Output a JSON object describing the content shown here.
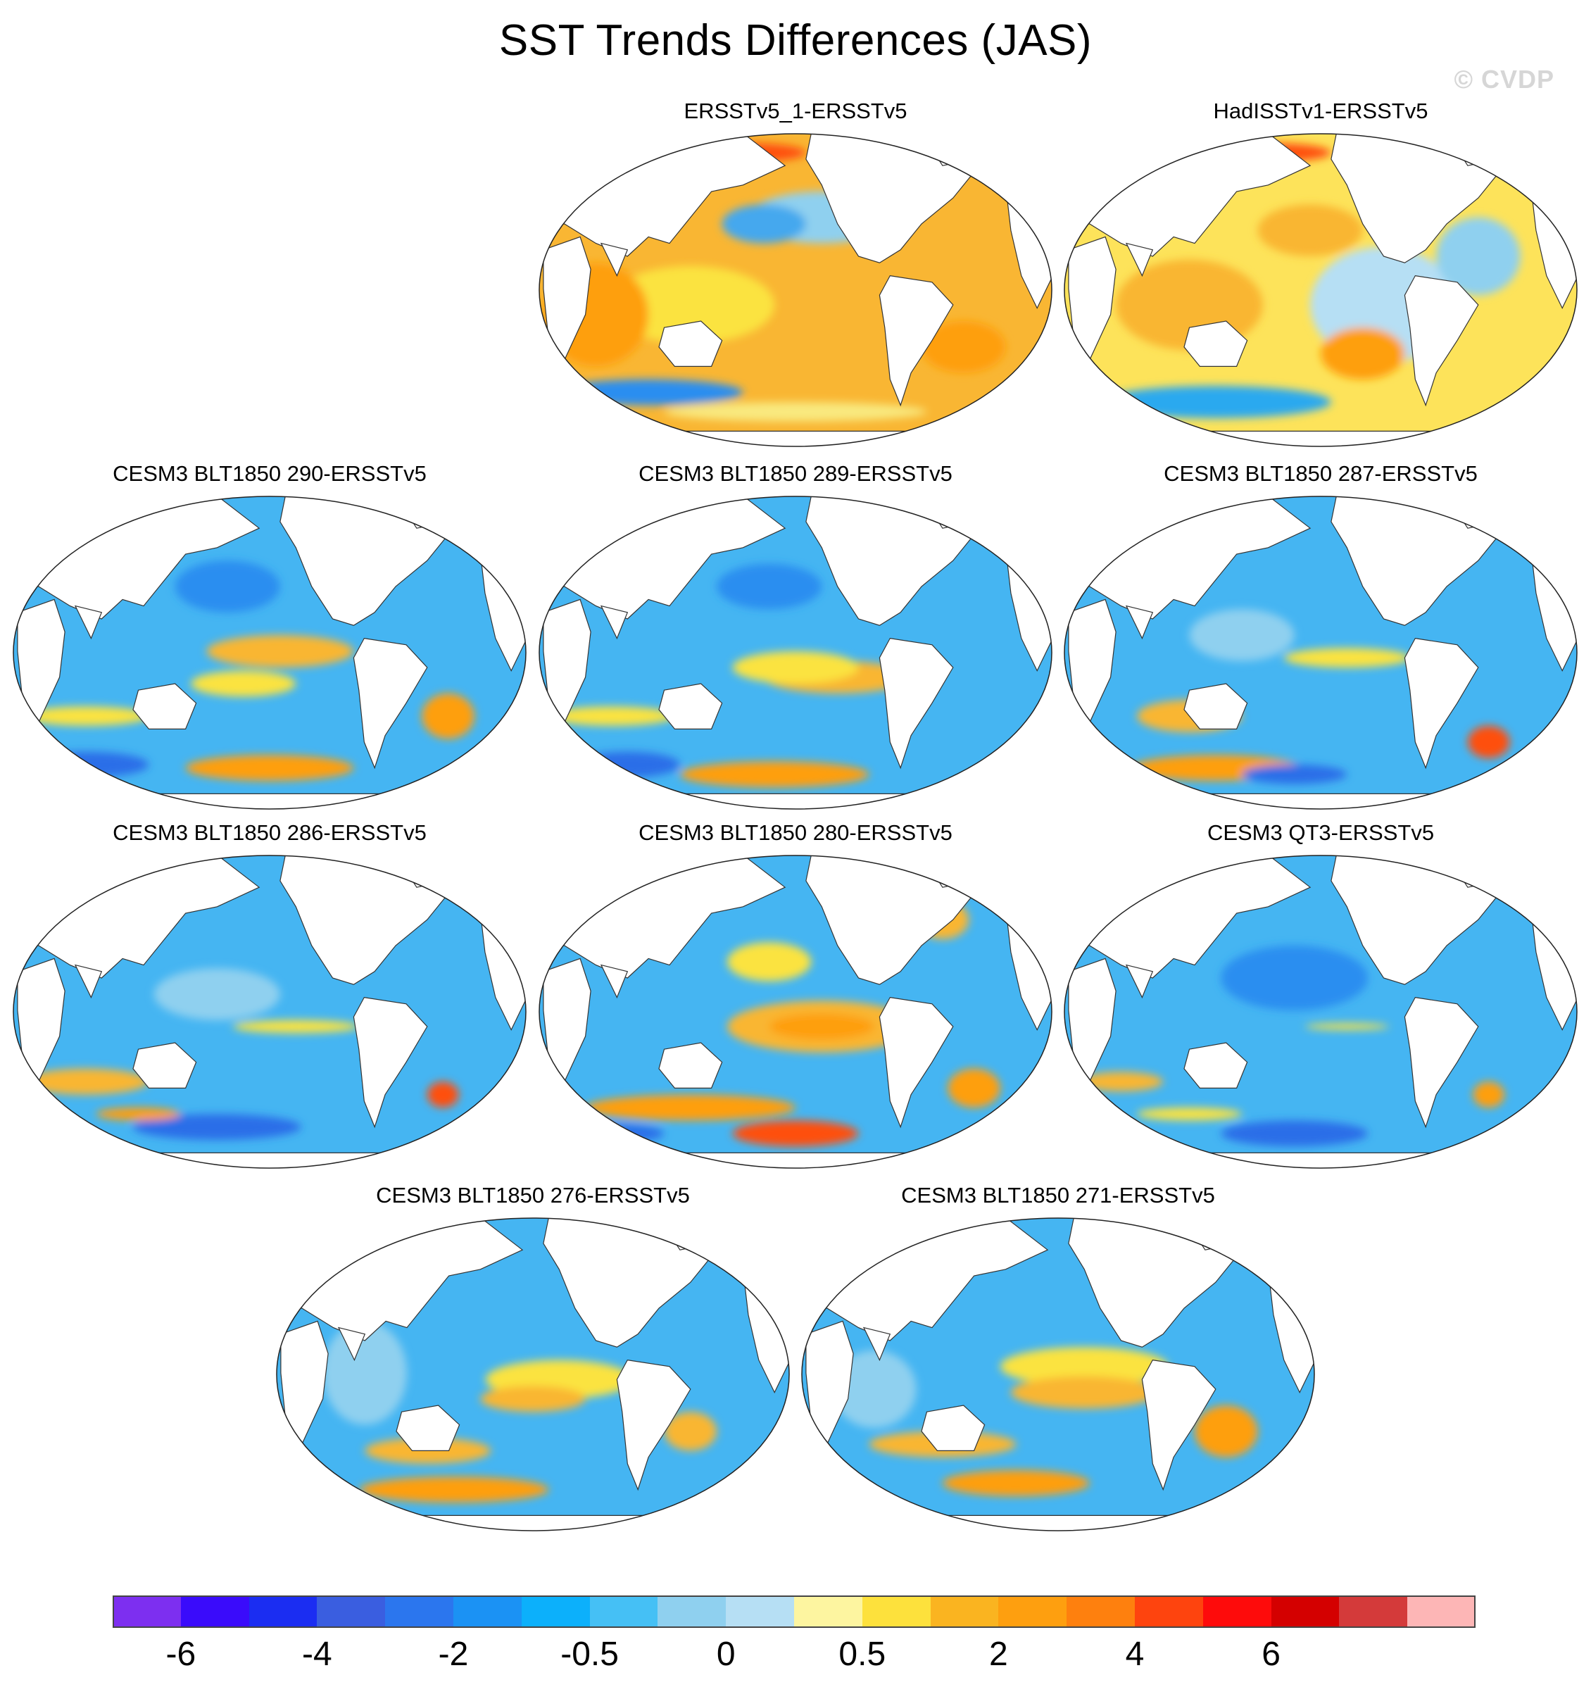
{
  "figure": {
    "title": "SST Trends Differences (JAS)",
    "watermark": "© CVDP"
  },
  "chart_data": {
    "type": "heatmap",
    "projection": "Robinson (global, Pacific-centered)",
    "field": "SST trend difference vs ERSSTv5",
    "panels": [
      {
        "label": "ERSSTv5_1-ERSSTv5",
        "pattern": "warm",
        "ocean_fill": "#f9b633",
        "blobs": [
          [
            "#fbe33f",
            0.3,
            0.55,
            0.16,
            0.12
          ],
          [
            "#8fd0ef",
            0.55,
            0.28,
            0.14,
            0.08
          ],
          [
            "#44a8ee",
            0.44,
            0.3,
            0.08,
            0.06
          ],
          [
            "#fe9f0f",
            0.12,
            0.58,
            0.1,
            0.16
          ],
          [
            "#fe9f0f",
            0.82,
            0.68,
            0.08,
            0.08
          ],
          [
            "#2b8ef0",
            0.22,
            0.82,
            0.18,
            0.04
          ],
          [
            "#f9e97f",
            0.5,
            0.88,
            0.25,
            0.03
          ],
          [
            "#fe5010",
            0.4,
            0.08,
            0.12,
            0.03
          ]
        ]
      },
      {
        "label": "HadISSTv1-ERSSTv5",
        "pattern": "warm-mixed",
        "ocean_fill": "#fde35a",
        "blobs": [
          [
            "#f9b633",
            0.25,
            0.55,
            0.14,
            0.14
          ],
          [
            "#b6dff4",
            0.62,
            0.55,
            0.14,
            0.18
          ],
          [
            "#8fd0ef",
            0.8,
            0.4,
            0.08,
            0.12
          ],
          [
            "#f9b633",
            0.48,
            0.32,
            0.1,
            0.08
          ],
          [
            "#2ba9ef",
            0.3,
            0.85,
            0.22,
            0.05
          ],
          [
            "#fe9f0f",
            0.58,
            0.7,
            0.08,
            0.08
          ],
          [
            "#fe5010",
            0.4,
            0.08,
            0.12,
            0.03
          ]
        ]
      },
      {
        "label": "CESM3 BLT1850 290-ERSSTv5",
        "pattern": "cool",
        "ocean_fill": "#45b5f2",
        "blobs": [
          [
            "#f9b633",
            0.52,
            0.5,
            0.14,
            0.05
          ],
          [
            "#fbe33f",
            0.45,
            0.6,
            0.1,
            0.04
          ],
          [
            "#2b8ef0",
            0.42,
            0.3,
            0.1,
            0.08
          ],
          [
            "#fe9f0f",
            0.5,
            0.86,
            0.16,
            0.04
          ],
          [
            "#fe9f0f",
            0.84,
            0.7,
            0.05,
            0.07
          ],
          [
            "#2b6ee8",
            0.15,
            0.85,
            0.12,
            0.04
          ],
          [
            "#fbe33f",
            0.15,
            0.7,
            0.12,
            0.03
          ]
        ]
      },
      {
        "label": "CESM3 BLT1850 289-ERSSTv5",
        "pattern": "cool",
        "ocean_fill": "#45b5f2",
        "blobs": [
          [
            "#f9b633",
            0.58,
            0.58,
            0.14,
            0.05
          ],
          [
            "#fbe33f",
            0.5,
            0.55,
            0.12,
            0.05
          ],
          [
            "#2b6ee8",
            0.72,
            0.18,
            0.04,
            0.05
          ],
          [
            "#2b8ef0",
            0.45,
            0.3,
            0.1,
            0.07
          ],
          [
            "#fe9f0f",
            0.46,
            0.88,
            0.18,
            0.04
          ],
          [
            "#fbe33f",
            0.15,
            0.7,
            0.12,
            0.03
          ],
          [
            "#2b6ee8",
            0.18,
            0.85,
            0.1,
            0.04
          ]
        ]
      },
      {
        "label": "CESM3 BLT1850 287-ERSSTv5",
        "pattern": "cool",
        "ocean_fill": "#45b5f2",
        "blobs": [
          [
            "#fbe33f",
            0.55,
            0.52,
            0.12,
            0.03
          ],
          [
            "#f9b633",
            0.25,
            0.7,
            0.1,
            0.05
          ],
          [
            "#fe5010",
            0.82,
            0.78,
            0.04,
            0.05
          ],
          [
            "#fe9f0f",
            0.3,
            0.86,
            0.16,
            0.04
          ],
          [
            "#2b6ee8",
            0.45,
            0.88,
            0.1,
            0.03
          ],
          [
            "#8fd0ef",
            0.35,
            0.45,
            0.1,
            0.08
          ]
        ]
      },
      {
        "label": "CESM3 BLT1850 286-ERSSTv5",
        "pattern": "cool",
        "ocean_fill": "#45b5f2",
        "blobs": [
          [
            "#fbe33f",
            0.55,
            0.55,
            0.12,
            0.02
          ],
          [
            "#8fd0ef",
            0.4,
            0.45,
            0.12,
            0.08
          ],
          [
            "#f9b633",
            0.15,
            0.72,
            0.12,
            0.04
          ],
          [
            "#2b6ee8",
            0.4,
            0.86,
            0.16,
            0.04
          ],
          [
            "#fe5010",
            0.83,
            0.76,
            0.03,
            0.04
          ],
          [
            "#fe9f0f",
            0.25,
            0.82,
            0.08,
            0.02
          ]
        ]
      },
      {
        "label": "CESM3 BLT1850 280-ERSSTv5",
        "pattern": "cool-warm",
        "ocean_fill": "#45b5f2",
        "blobs": [
          [
            "#f9b633",
            0.55,
            0.55,
            0.18,
            0.08
          ],
          [
            "#fe9f0f",
            0.55,
            0.55,
            0.1,
            0.04
          ],
          [
            "#fbe33f",
            0.45,
            0.35,
            0.08,
            0.06
          ],
          [
            "#fe9f0f",
            0.3,
            0.8,
            0.2,
            0.04
          ],
          [
            "#fe5010",
            0.5,
            0.88,
            0.12,
            0.04
          ],
          [
            "#2b6ee8",
            0.15,
            0.88,
            0.1,
            0.03
          ],
          [
            "#f9b633",
            0.78,
            0.22,
            0.05,
            0.06
          ],
          [
            "#fe9f0f",
            0.84,
            0.74,
            0.05,
            0.06
          ]
        ]
      },
      {
        "label": "CESM3 QT3-ERSSTv5",
        "pattern": "cool",
        "ocean_fill": "#45b5f2",
        "blobs": [
          [
            "#2b8ef0",
            0.45,
            0.4,
            0.14,
            0.1
          ],
          [
            "#fbe33f",
            0.55,
            0.55,
            0.08,
            0.01
          ],
          [
            "#f9b633",
            0.12,
            0.72,
            0.08,
            0.03
          ],
          [
            "#2b6ee8",
            0.45,
            0.88,
            0.14,
            0.04
          ],
          [
            "#fe9f0f",
            0.82,
            0.76,
            0.03,
            0.04
          ],
          [
            "#fbe33f",
            0.25,
            0.82,
            0.1,
            0.02
          ]
        ]
      },
      {
        "label": "CESM3 BLT1850 276-ERSSTv5",
        "pattern": "cool-warm",
        "ocean_fill": "#45b5f2",
        "blobs": [
          [
            "#fbe33f",
            0.55,
            0.52,
            0.14,
            0.06
          ],
          [
            "#f9b633",
            0.5,
            0.58,
            0.1,
            0.04
          ],
          [
            "#f9b633",
            0.3,
            0.74,
            0.12,
            0.04
          ],
          [
            "#fe9f0f",
            0.35,
            0.86,
            0.18,
            0.04
          ],
          [
            "#8fd0ef",
            0.18,
            0.5,
            0.08,
            0.16
          ],
          [
            "#f9b633",
            0.8,
            0.68,
            0.05,
            0.06
          ]
        ]
      },
      {
        "label": "CESM3 BLT1850 271-ERSSTv5",
        "pattern": "cool-warm",
        "ocean_fill": "#45b5f2",
        "blobs": [
          [
            "#fbe33f",
            0.55,
            0.48,
            0.16,
            0.06
          ],
          [
            "#f9b633",
            0.55,
            0.56,
            0.14,
            0.05
          ],
          [
            "#f9b633",
            0.28,
            0.72,
            0.14,
            0.04
          ],
          [
            "#fe9f0f",
            0.42,
            0.84,
            0.14,
            0.04
          ],
          [
            "#fe9f0f",
            0.82,
            0.68,
            0.06,
            0.08
          ],
          [
            "#8fd0ef",
            0.15,
            0.55,
            0.08,
            0.12
          ]
        ]
      }
    ]
  },
  "colorbar": {
    "colors": [
      "#7d2ff0",
      "#3a0bfb",
      "#1b2df2",
      "#3a5ee0",
      "#2b76ee",
      "#1b92f4",
      "#0cb0fb",
      "#45c0f5",
      "#8fd0ef",
      "#b6dff4",
      "#fdf5a0",
      "#fde13c",
      "#fab420",
      "#fe9f0f",
      "#fe800e",
      "#fe440e",
      "#fe0b0b",
      "#d40000",
      "#d43a3a",
      "#fdb6b6"
    ],
    "tick_labels": [
      "-6",
      "-4",
      "-2",
      "-0.5",
      "0",
      "0.5",
      "2",
      "4",
      "6"
    ],
    "tick_boundaries": [
      2,
      4,
      6,
      8,
      10,
      12,
      14,
      16,
      18
    ]
  }
}
